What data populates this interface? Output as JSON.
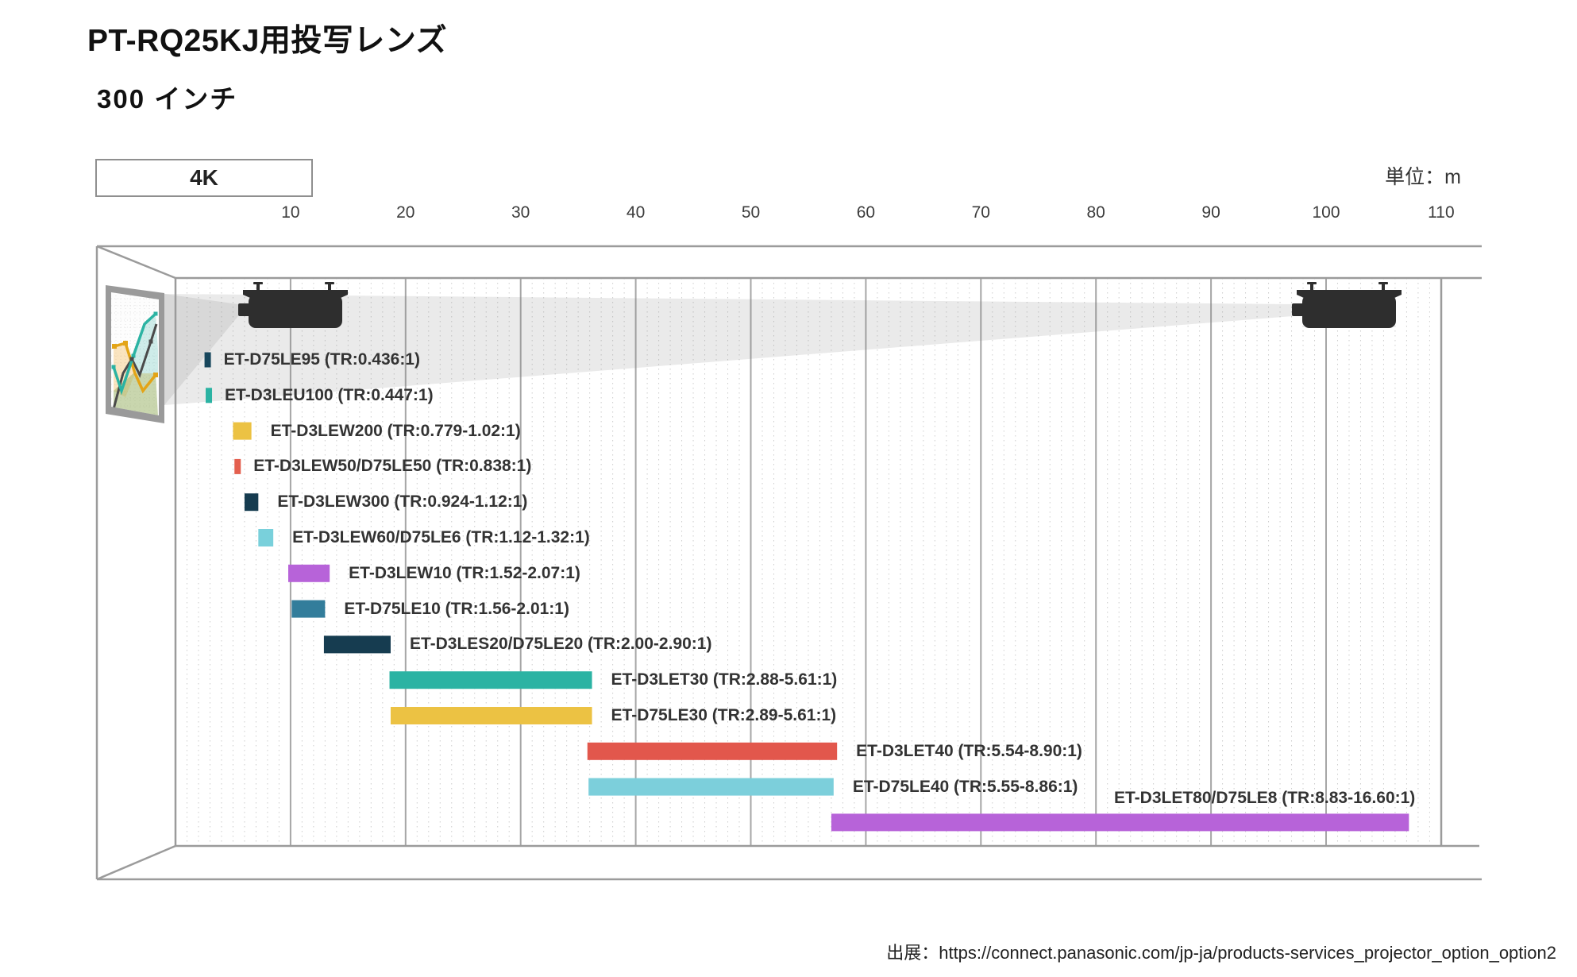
{
  "header": {
    "title": "PT-RQ25KJ用投写レンズ",
    "subtitle": "300 インチ",
    "resolution_badge": "4K",
    "unit_label": "単位：m"
  },
  "footer": {
    "source": "出展：https://connect.panasonic.com/jp-ja/products-services_projector_option_option2"
  },
  "chart_data": {
    "type": "bar",
    "orientation": "horizontal-range",
    "title": "PT-RQ25KJ用投写レンズ",
    "subtitle": "300 インチ",
    "resolution": "4K",
    "unit": "m",
    "xlabel": "単位：m",
    "axis": {
      "tick_values": [
        10,
        20,
        30,
        40,
        50,
        60,
        70,
        80,
        90,
        100,
        110
      ],
      "min": 0,
      "max": 110,
      "minor_step": 1,
      "grid": "on"
    },
    "lenses": [
      {
        "model": "ET-D75LE95",
        "label": "ET-D75LE95 (TR:0.436:1)",
        "throw_ratio": "0.436:1",
        "fixed": true,
        "distance_min_m": 2.8,
        "distance_max_m": 2.8,
        "color": "#17465c"
      },
      {
        "model": "ET-D3LEU100",
        "label": "ET-D3LEU100 (TR:0.447:1)",
        "throw_ratio": "0.447:1",
        "fixed": true,
        "distance_min_m": 2.9,
        "distance_max_m": 2.9,
        "color": "#2bb3a3"
      },
      {
        "model": "ET-D3LEW200",
        "label": "ET-D3LEW200 (TR:0.779-1.02:1)",
        "throw_ratio": "0.779-1.02:1",
        "fixed": false,
        "distance_min_m": 5.0,
        "distance_max_m": 6.6,
        "color": "#ecc243"
      },
      {
        "model": "ET-D3LEW50/D75LE50",
        "label": "ET-D3LEW50/D75LE50 (TR:0.838:1)",
        "throw_ratio": "0.838:1",
        "fixed": true,
        "distance_min_m": 5.4,
        "distance_max_m": 5.4,
        "color": "#e4604f"
      },
      {
        "model": "ET-D3LEW300",
        "label": "ET-D3LEW300 (TR:0.924-1.12:1)",
        "throw_ratio": "0.924-1.12:1",
        "fixed": false,
        "distance_min_m": 6.0,
        "distance_max_m": 7.2,
        "color": "#163c50"
      },
      {
        "model": "ET-D3LEW60/D75LE6",
        "label": "ET-D3LEW60/D75LE6 (TR:1.12-1.32:1)",
        "throw_ratio": "1.12-1.32:1",
        "fixed": false,
        "distance_min_m": 7.2,
        "distance_max_m": 8.5,
        "color": "#79d0db"
      },
      {
        "model": "ET-D3LEW10",
        "label": "ET-D3LEW10 (TR:1.52-2.07:1)",
        "throw_ratio": "1.52-2.07:1",
        "fixed": false,
        "distance_min_m": 9.8,
        "distance_max_m": 13.4,
        "color": "#b763d9"
      },
      {
        "model": "ET-D75LE10",
        "label": "ET-D75LE10 (TR:1.56-2.01:1)",
        "throw_ratio": "1.56-2.01:1",
        "fixed": false,
        "distance_min_m": 10.1,
        "distance_max_m": 13.0,
        "color": "#337d9b"
      },
      {
        "model": "ET-D3LES20/D75LE20",
        "label": "ET-D3LES20/D75LE20 (TR:2.00-2.90:1)",
        "throw_ratio": "2.00-2.90:1",
        "fixed": false,
        "distance_min_m": 12.9,
        "distance_max_m": 18.7,
        "color": "#163c50"
      },
      {
        "model": "ET-D3LET30",
        "label": "ET-D3LET30 (TR:2.88-5.61:1)",
        "throw_ratio": "2.88-5.61:1",
        "fixed": false,
        "distance_min_m": 18.6,
        "distance_max_m": 36.2,
        "color": "#2bb3a3"
      },
      {
        "model": "ET-D75LE30",
        "label": "ET-D75LE30 (TR:2.89-5.61:1)",
        "throw_ratio": "2.89-5.61:1",
        "fixed": false,
        "distance_min_m": 18.7,
        "distance_max_m": 36.2,
        "color": "#ecc243"
      },
      {
        "model": "ET-D3LET40",
        "label": "ET-D3LET40 (TR:5.54-8.90:1)",
        "throw_ratio": "5.54-8.90:1",
        "fixed": false,
        "distance_min_m": 35.8,
        "distance_max_m": 57.5,
        "color": "#e2574c"
      },
      {
        "model": "ET-D75LE40",
        "label": "ET-D75LE40 (TR:5.55-8.86:1)",
        "throw_ratio": "5.55-8.86:1",
        "fixed": false,
        "distance_min_m": 35.9,
        "distance_max_m": 57.2,
        "color": "#7ccfdb"
      },
      {
        "model": "ET-D3LET80/D75LE8",
        "label": "ET-D3LET80/D75LE8 (TR:8.83-16.60:1)",
        "throw_ratio": "8.83-16.60:1",
        "fixed": false,
        "distance_min_m": 57.0,
        "distance_max_m": 107.2,
        "color": "#b763d9",
        "label_position": "above"
      }
    ],
    "legend_position": "none",
    "colors": {
      "grid_major": "#a6a6a6",
      "grid_minor": "#cdcdcd",
      "room_line": "#9b9b9b",
      "beam": "#e7e7e7",
      "projector": "#2e2e2e",
      "label_text": "#333333"
    }
  }
}
